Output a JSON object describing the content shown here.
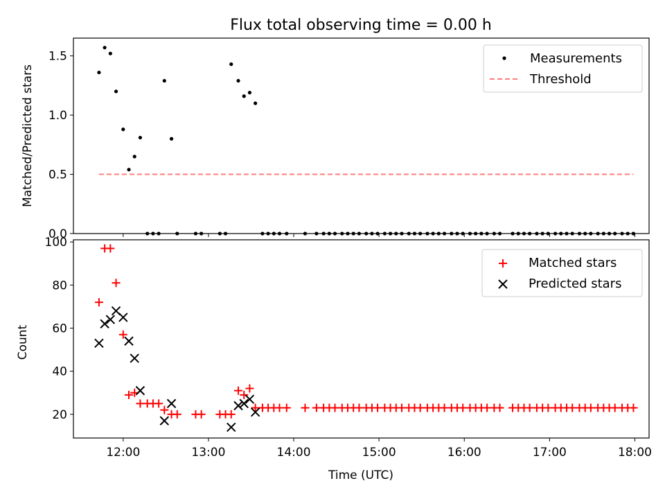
{
  "figure": {
    "title": "Flux total observing time = 0.00 h"
  },
  "chart_data": [
    {
      "type": "scatter",
      "panel": "top",
      "xlabel": "",
      "ylabel": "Matched/Predicted stars",
      "xlim": [
        "11:25",
        "18:10"
      ],
      "ylim": [
        0,
        1.65
      ],
      "x_is_time": true,
      "yticks": [
        "0.0",
        "0.5",
        "1.0",
        "1.5"
      ],
      "ytick_values": [
        0,
        0.5,
        1.0,
        1.5
      ],
      "xtick_values": [
        "12:00",
        "13:00",
        "14:00",
        "15:00",
        "16:00",
        "17:00",
        "18:00"
      ],
      "grid": false,
      "legend": {
        "placement": "top-right",
        "entries": [
          "Measurements",
          "Threshold"
        ]
      },
      "series": [
        {
          "name": "Measurements",
          "marker": "dot",
          "color": "#000000",
          "points": [
            [
              "11:43",
              1.36
            ],
            [
              "11:47",
              1.57
            ],
            [
              "11:51",
              1.52
            ],
            [
              "11:55",
              1.2
            ],
            [
              "12:00",
              0.88
            ],
            [
              "12:04",
              0.54
            ],
            [
              "12:08",
              0.65
            ],
            [
              "12:12",
              0.81
            ],
            [
              "12:17",
              0.0
            ],
            [
              "12:21",
              0.0
            ],
            [
              "12:25",
              0.0
            ],
            [
              "12:29",
              1.29
            ],
            [
              "12:34",
              0.8
            ],
            [
              "12:38",
              0.0
            ],
            [
              "12:51",
              0.0
            ],
            [
              "12:55",
              0.0
            ],
            [
              "13:08",
              0.0
            ],
            [
              "13:12",
              0.0
            ],
            [
              "13:16",
              1.43
            ],
            [
              "13:21",
              1.29
            ],
            [
              "13:25",
              1.16
            ],
            [
              "13:29",
              1.19
            ],
            [
              "13:33",
              1.1
            ],
            [
              "13:38",
              0.0
            ],
            [
              "13:42",
              0.0
            ],
            [
              "13:46",
              0.0
            ],
            [
              "13:50",
              0.0
            ],
            [
              "13:55",
              0.0
            ],
            [
              "14:08",
              0.0
            ],
            [
              "14:16",
              0.0
            ],
            [
              "14:21",
              0.0
            ],
            [
              "14:25",
              0.0
            ],
            [
              "14:29",
              0.0
            ],
            [
              "14:34",
              0.0
            ],
            [
              "14:38",
              0.0
            ],
            [
              "14:42",
              0.0
            ],
            [
              "14:46",
              0.0
            ],
            [
              "14:51",
              0.0
            ],
            [
              "14:55",
              0.0
            ],
            [
              "14:59",
              0.0
            ],
            [
              "15:04",
              0.0
            ],
            [
              "15:08",
              0.0
            ],
            [
              "15:12",
              0.0
            ],
            [
              "15:16",
              0.0
            ],
            [
              "15:21",
              0.0
            ],
            [
              "15:25",
              0.0
            ],
            [
              "15:29",
              0.0
            ],
            [
              "15:34",
              0.0
            ],
            [
              "15:38",
              0.0
            ],
            [
              "15:42",
              0.0
            ],
            [
              "15:46",
              0.0
            ],
            [
              "15:51",
              0.0
            ],
            [
              "15:55",
              0.0
            ],
            [
              "15:59",
              0.0
            ],
            [
              "16:04",
              0.0
            ],
            [
              "16:08",
              0.0
            ],
            [
              "16:12",
              0.0
            ],
            [
              "16:16",
              0.0
            ],
            [
              "16:21",
              0.0
            ],
            [
              "16:25",
              0.0
            ],
            [
              "16:34",
              0.0
            ],
            [
              "16:38",
              0.0
            ],
            [
              "16:42",
              0.0
            ],
            [
              "16:46",
              0.0
            ],
            [
              "16:51",
              0.0
            ],
            [
              "16:55",
              0.0
            ],
            [
              "16:59",
              0.0
            ],
            [
              "17:04",
              0.0
            ],
            [
              "17:08",
              0.0
            ],
            [
              "17:12",
              0.0
            ],
            [
              "17:16",
              0.0
            ],
            [
              "17:21",
              0.0
            ],
            [
              "17:25",
              0.0
            ],
            [
              "17:29",
              0.0
            ],
            [
              "17:34",
              0.0
            ],
            [
              "17:38",
              0.0
            ],
            [
              "17:42",
              0.0
            ],
            [
              "17:46",
              0.0
            ],
            [
              "17:51",
              0.0
            ],
            [
              "17:55",
              0.0
            ],
            [
              "17:59",
              0.0
            ]
          ]
        },
        {
          "name": "Threshold",
          "type": "line",
          "style": "dashed",
          "color": "#ff7b7b",
          "points": [
            [
              "11:43",
              0.5
            ],
            [
              "17:59",
              0.5
            ]
          ]
        }
      ]
    },
    {
      "type": "scatter",
      "panel": "bottom",
      "xlabel": "Time (UTC)",
      "ylabel": "Count",
      "xlim": [
        "11:25",
        "18:10"
      ],
      "ylim": [
        9,
        101
      ],
      "x_is_time": true,
      "xticks": [
        "12:00",
        "13:00",
        "14:00",
        "15:00",
        "16:00",
        "17:00",
        "18:00"
      ],
      "yticks": [
        "20",
        "40",
        "60",
        "80",
        "100"
      ],
      "ytick_values": [
        20,
        40,
        60,
        80,
        100
      ],
      "grid": false,
      "legend": {
        "placement": "top-right",
        "entries": [
          "Matched stars",
          "Predicted stars"
        ]
      },
      "series": [
        {
          "name": "Matched stars",
          "marker": "plus",
          "color": "#ff0000",
          "points": [
            [
              "11:43",
              72
            ],
            [
              "11:47",
              97
            ],
            [
              "11:51",
              97
            ],
            [
              "11:55",
              81
            ],
            [
              "12:00",
              57
            ],
            [
              "12:04",
              29
            ],
            [
              "12:08",
              30
            ],
            [
              "12:12",
              25
            ],
            [
              "12:17",
              25
            ],
            [
              "12:21",
              25
            ],
            [
              "12:25",
              25
            ],
            [
              "12:29",
              22
            ],
            [
              "12:34",
              20
            ],
            [
              "12:38",
              20
            ],
            [
              "12:51",
              20
            ],
            [
              "12:55",
              20
            ],
            [
              "13:08",
              20
            ],
            [
              "13:12",
              20
            ],
            [
              "13:16",
              20
            ],
            [
              "13:21",
              31
            ],
            [
              "13:25",
              29
            ],
            [
              "13:29",
              32
            ],
            [
              "13:33",
              23
            ],
            [
              "13:38",
              23
            ],
            [
              "13:42",
              23
            ],
            [
              "13:46",
              23
            ],
            [
              "13:50",
              23
            ],
            [
              "13:55",
              23
            ],
            [
              "14:08",
              23
            ],
            [
              "14:16",
              23
            ],
            [
              "14:21",
              23
            ],
            [
              "14:25",
              23
            ],
            [
              "14:29",
              23
            ],
            [
              "14:34",
              23
            ],
            [
              "14:38",
              23
            ],
            [
              "14:42",
              23
            ],
            [
              "14:46",
              23
            ],
            [
              "14:51",
              23
            ],
            [
              "14:55",
              23
            ],
            [
              "14:59",
              23
            ],
            [
              "15:04",
              23
            ],
            [
              "15:08",
              23
            ],
            [
              "15:12",
              23
            ],
            [
              "15:16",
              23
            ],
            [
              "15:21",
              23
            ],
            [
              "15:25",
              23
            ],
            [
              "15:29",
              23
            ],
            [
              "15:34",
              23
            ],
            [
              "15:38",
              23
            ],
            [
              "15:42",
              23
            ],
            [
              "15:46",
              23
            ],
            [
              "15:51",
              23
            ],
            [
              "15:55",
              23
            ],
            [
              "15:59",
              23
            ],
            [
              "16:04",
              23
            ],
            [
              "16:08",
              23
            ],
            [
              "16:12",
              23
            ],
            [
              "16:16",
              23
            ],
            [
              "16:21",
              23
            ],
            [
              "16:25",
              23
            ],
            [
              "16:34",
              23
            ],
            [
              "16:38",
              23
            ],
            [
              "16:42",
              23
            ],
            [
              "16:46",
              23
            ],
            [
              "16:51",
              23
            ],
            [
              "16:55",
              23
            ],
            [
              "16:59",
              23
            ],
            [
              "17:04",
              23
            ],
            [
              "17:08",
              23
            ],
            [
              "17:12",
              23
            ],
            [
              "17:16",
              23
            ],
            [
              "17:21",
              23
            ],
            [
              "17:25",
              23
            ],
            [
              "17:29",
              23
            ],
            [
              "17:34",
              23
            ],
            [
              "17:38",
              23
            ],
            [
              "17:42",
              23
            ],
            [
              "17:46",
              23
            ],
            [
              "17:51",
              23
            ],
            [
              "17:55",
              23
            ],
            [
              "17:59",
              23
            ]
          ]
        },
        {
          "name": "Predicted stars",
          "marker": "x",
          "color": "#000000",
          "points": [
            [
              "11:43",
              53
            ],
            [
              "11:47",
              62
            ],
            [
              "11:51",
              64
            ],
            [
              "11:55",
              68
            ],
            [
              "12:00",
              65
            ],
            [
              "12:04",
              54
            ],
            [
              "12:08",
              46
            ],
            [
              "12:12",
              31
            ],
            [
              "12:29",
              17
            ],
            [
              "12:34",
              25
            ],
            [
              "13:16",
              14
            ],
            [
              "13:21",
              24
            ],
            [
              "13:25",
              25
            ],
            [
              "13:29",
              27
            ],
            [
              "13:33",
              21
            ]
          ]
        }
      ]
    }
  ]
}
